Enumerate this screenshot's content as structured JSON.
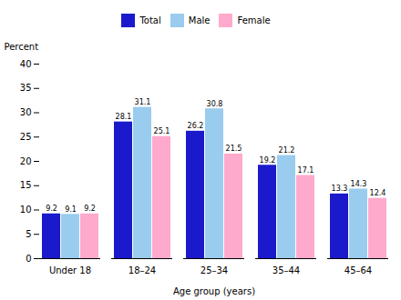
{
  "chart_data": {
    "type": "bar",
    "categories": [
      "Under 18",
      "18–24",
      "25–34",
      "35–44",
      "45–64"
    ],
    "series": [
      {
        "name": "Total",
        "color": "#1a1acc",
        "values": [
          9.2,
          28.1,
          26.2,
          19.2,
          13.3
        ]
      },
      {
        "name": "Male",
        "color": "#99ccee",
        "values": [
          9.1,
          31.1,
          30.8,
          21.2,
          14.3
        ]
      },
      {
        "name": "Female",
        "color": "#ffaacc",
        "values": [
          9.2,
          25.1,
          21.5,
          17.1,
          12.4
        ]
      }
    ],
    "xlabel": "Age group (years)",
    "ylabel": "Percent",
    "ylim": [
      0,
      40
    ],
    "yticks": [
      0,
      5,
      10,
      15,
      20,
      25,
      30,
      35,
      40
    ],
    "grid": false,
    "legend": "top",
    "data_labels": true
  }
}
